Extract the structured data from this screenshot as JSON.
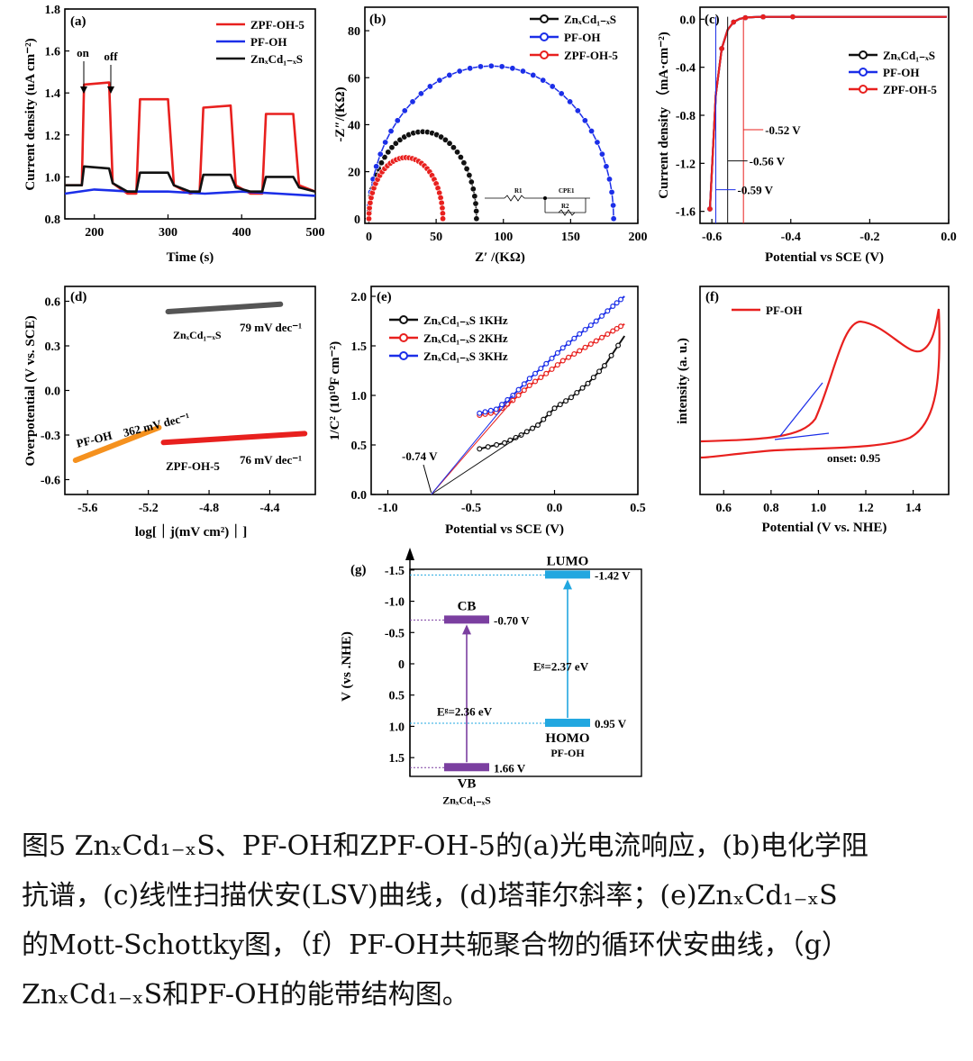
{
  "chart_data": [
    {
      "panel": "(a)",
      "type": "line",
      "xlabel": "Time (s)",
      "ylabel": "Current density (uA cm⁻²)",
      "xlim": [
        160,
        500
      ],
      "ylim": [
        0.8,
        1.8
      ],
      "xticks": [
        "200",
        "300",
        "400",
        "500"
      ],
      "yticks": [
        "0.8",
        "1.0",
        "1.2",
        "1.4",
        "1.6",
        "1.8"
      ],
      "annotations": [
        "on",
        "off"
      ],
      "legend": [
        "ZPF-OH-5",
        "PF-OH",
        "ZnₓCd₁₋ₓS"
      ],
      "series": [
        {
          "name": "ZPF-OH-5",
          "color": "#e8201e",
          "x": [
            160,
            183,
            186,
            220,
            225,
            245,
            257,
            262,
            300,
            308,
            330,
            343,
            348,
            385,
            392,
            412,
            428,
            433,
            470,
            478,
            500
          ],
          "y": [
            0.96,
            0.96,
            1.44,
            1.45,
            0.97,
            0.92,
            0.92,
            1.37,
            1.37,
            0.96,
            0.92,
            0.93,
            1.33,
            1.34,
            0.96,
            0.92,
            0.92,
            1.3,
            1.3,
            0.96,
            0.93
          ]
        },
        {
          "name": "PF-OH",
          "color": "#1b2ee8",
          "x": [
            160,
            200,
            250,
            300,
            350,
            400,
            450,
            500
          ],
          "y": [
            0.92,
            0.94,
            0.93,
            0.93,
            0.92,
            0.93,
            0.92,
            0.91
          ]
        },
        {
          "name": "ZnₓCd₁₋ₓS",
          "color": "#111111",
          "x": [
            160,
            183,
            186,
            220,
            225,
            245,
            257,
            262,
            300,
            308,
            330,
            343,
            348,
            385,
            392,
            412,
            428,
            433,
            470,
            478,
            500
          ],
          "y": [
            0.96,
            0.96,
            1.05,
            1.04,
            0.97,
            0.93,
            0.93,
            1.02,
            1.02,
            0.96,
            0.93,
            0.93,
            1.01,
            1.01,
            0.95,
            0.93,
            0.93,
            1.0,
            1.0,
            0.95,
            0.93
          ]
        }
      ]
    },
    {
      "panel": "(b)",
      "type": "scatter",
      "xlabel": "Z′ /(KΩ)",
      "ylabel": "-Z″/(KΩ)",
      "xlim": [
        -3,
        200
      ],
      "ylim": [
        -2,
        90
      ],
      "xticks": [
        "0",
        "50",
        "100",
        "150",
        "200"
      ],
      "yticks": [
        "0",
        "20",
        "40",
        "60",
        "80"
      ],
      "circuit_labels": [
        "R1",
        "CPE1",
        "R2"
      ],
      "legend": [
        "ZnₓCd₁₋ₓS",
        "PF-OH",
        "ZPF-OH-5"
      ],
      "series": [
        {
          "name": "ZnₓCd₁₋ₓS",
          "color": "#111111",
          "x0": 0,
          "x1": 80,
          "peak": 37
        },
        {
          "name": "PF-OH",
          "color": "#1b2ee8",
          "x0": 0,
          "x1": 182,
          "peak": 65
        },
        {
          "name": "ZPF-OH-5",
          "color": "#e8201e",
          "x0": 0,
          "x1": 55,
          "peak": 26
        }
      ]
    },
    {
      "panel": "(c)",
      "type": "line",
      "xlabel": "Potential vs SCE (V)",
      "ylabel": "Current density （mA·cm⁻²)",
      "xlim": [
        -0.63,
        0.0
      ],
      "ylim": [
        -1.7,
        0.1
      ],
      "xticks": [
        "-0.6",
        "-0.4",
        "-0.2",
        "0.0"
      ],
      "yticks": [
        "0.0",
        "-0.4",
        "-0.8",
        "-1.2",
        "-1.6"
      ],
      "legend": [
        "ZnₓCd₁₋ₓS",
        "PF-OH",
        "ZPF-OH-5"
      ],
      "annotations": [
        {
          "text": "-0.52 V",
          "color": "#e8201e",
          "y": -0.92,
          "x": -0.52
        },
        {
          "text": "-0.56 V",
          "color": "#111111",
          "y": -1.18,
          "x": -0.56
        },
        {
          "text": "-0.59 V",
          "color": "#1b2ee8",
          "y": -1.42,
          "x": -0.59
        }
      ],
      "series": [
        {
          "name": "ZnₓCd₁₋ₓS",
          "color": "#111111",
          "onset": -0.56
        },
        {
          "name": "PF-OH",
          "color": "#1b2ee8",
          "onset": -0.59
        },
        {
          "name": "ZPF-OH-5",
          "color": "#e8201e",
          "onset": -0.52
        }
      ]
    },
    {
      "panel": "(d)",
      "type": "line",
      "xlabel": "log[｜j(mV cm²)｜]",
      "ylabel": "Overpotential (V vs. SCE)",
      "xlim": [
        -5.75,
        -4.1
      ],
      "ylim": [
        -0.7,
        0.7
      ],
      "xticks": [
        "-5.6",
        "-5.2",
        "-4.8",
        "-4.4"
      ],
      "yticks": [
        "0.6",
        "0.3",
        "0.0",
        "-0.3",
        "-0.6"
      ],
      "series": [
        {
          "name": "ZnₓCd₁₋ₓS",
          "slope_label": "79 mV dec⁻¹",
          "color": "#555555",
          "x": [
            -5.07,
            -4.33
          ],
          "y": [
            0.53,
            0.58
          ]
        },
        {
          "name": "PF-OH",
          "slope_label": "362 mV dec⁻¹",
          "color": "#f5911e",
          "x": [
            -5.68,
            -5.13
          ],
          "y": [
            -0.47,
            -0.25
          ]
        },
        {
          "name": "ZPF-OH-5",
          "slope_label": "76 mV dec⁻¹",
          "color": "#e8201e",
          "x": [
            -5.1,
            -4.17
          ],
          "y": [
            -0.35,
            -0.29
          ]
        }
      ]
    },
    {
      "panel": "(e)",
      "type": "line",
      "xlabel": "Potential vs SCE (V)",
      "ylabel": "1/C² (10¹⁰F cm⁻²)",
      "xlim": [
        -1.1,
        0.5
      ],
      "ylim": [
        0,
        2.1
      ],
      "xticks": [
        "-1.0",
        "-0.5",
        "0.0",
        "0.5"
      ],
      "yticks": [
        "0.0",
        "0.5",
        "1.0",
        "1.5",
        "2.0"
      ],
      "annotations": [
        "-0.74 V"
      ],
      "legend": [
        "ZnₓCd₁₋ₓS 1KHz",
        "ZnₓCd₁₋ₓS 2KHz",
        "ZnₓCd₁₋ₓS 3KHz"
      ],
      "series": [
        {
          "name": "ZnₓCd₁₋ₓS 1KHz",
          "color": "#111111",
          "x": [
            -0.45,
            -0.3,
            -0.2,
            -0.1,
            0.0,
            0.1,
            0.2,
            0.3,
            0.42
          ],
          "y": [
            0.46,
            0.52,
            0.6,
            0.7,
            0.87,
            0.98,
            1.12,
            1.3,
            1.6
          ]
        },
        {
          "name": "ZnₓCd₁₋ₓS 2KHz",
          "color": "#e8201e",
          "x": [
            -0.45,
            -0.35,
            -0.25,
            -0.15,
            -0.05,
            0.05,
            0.15,
            0.25,
            0.35,
            0.42
          ],
          "y": [
            0.8,
            0.83,
            0.95,
            1.1,
            1.22,
            1.35,
            1.45,
            1.55,
            1.65,
            1.72
          ]
        },
        {
          "name": "ZnₓCd₁₋ₓS 3KHz",
          "color": "#1b2ee8",
          "x": [
            -0.45,
            -0.35,
            -0.25,
            -0.15,
            -0.05,
            0.05,
            0.15,
            0.25,
            0.35,
            0.42
          ],
          "y": [
            0.82,
            0.86,
            1.0,
            1.17,
            1.32,
            1.48,
            1.62,
            1.75,
            1.9,
            2.0
          ]
        }
      ]
    },
    {
      "panel": "(f)",
      "type": "line",
      "xlabel": "Potential (V vs. NHE)",
      "ylabel": "intensity (a. u.)",
      "xlim": [
        0.5,
        1.55
      ],
      "ylim": [
        0,
        1
      ],
      "xticks": [
        "0.6",
        "0.8",
        "1.0",
        "1.2",
        "1.4"
      ],
      "legend": [
        "PF-OH"
      ],
      "annotations": [
        "onset: 0.95"
      ],
      "series": [
        {
          "name": "PF-OH",
          "color": "#e8201e"
        }
      ]
    },
    {
      "panel": "(g)",
      "type": "diagram",
      "ylabel": "V (vs .NHE)",
      "ylim": [
        -1.8,
        1.8
      ],
      "yticks": [
        "-1.5",
        "-1.0",
        "-0.5",
        "0",
        "0.5",
        "1.0",
        "1.5"
      ],
      "materials": [
        {
          "name": "ZnₓCd₁₋ₓS",
          "color": "#7b3fa0",
          "top_label": "CB",
          "bottom_label": "VB",
          "top": -0.7,
          "bottom": 1.66,
          "top_text": "-0.70 V",
          "bottom_text": "1.66 V",
          "gap_text": "Eᵍ=2.36 eV"
        },
        {
          "name": "PF-OH",
          "color": "#22a7e0",
          "top_label": "LUMO",
          "bottom_label": "HOMO",
          "top": -1.42,
          "bottom": 0.95,
          "top_text": "-1.42 V",
          "bottom_text": "0.95 V",
          "gap_text": "Eᵍ=2.37 eV"
        }
      ]
    }
  ],
  "caption": {
    "line1": "图5 ZnₓCd₁₋ₓS、PF-OH和ZPF-OH-5的(a)光电流响应，(b)电化学阻",
    "line2": "抗谱，(c)线性扫描伏安(LSV)曲线，(d)塔菲尔斜率；(e)ZnₓCd₁₋ₓS",
    "line3": "的Mott-Schottky图，（f）PF-OH共轭聚合物的循环伏安曲线，（g）",
    "line4": "ZnₓCd₁₋ₓS和PF-OH的能带结构图。"
  }
}
